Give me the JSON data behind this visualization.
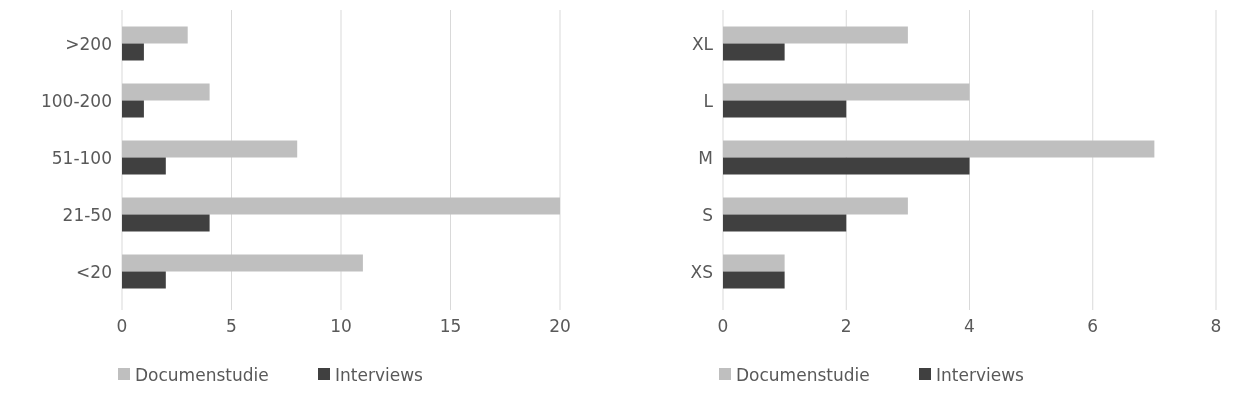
{
  "chart_data": [
    {
      "type": "bar",
      "orientation": "horizontal",
      "categories": [
        ">200",
        "100-200",
        "51-100",
        "21-50",
        "<20"
      ],
      "series": [
        {
          "name": "Documenstudie",
          "color": "#bfbfbf",
          "values": [
            3,
            4,
            8,
            20,
            11
          ]
        },
        {
          "name": "Interviews",
          "color": "#404040",
          "values": [
            1,
            1,
            2,
            4,
            2
          ]
        }
      ],
      "xlim": [
        0,
        20
      ],
      "xticks": [
        0,
        5,
        10,
        15,
        20
      ],
      "grid": "x",
      "legend": "bottom left"
    },
    {
      "type": "bar",
      "orientation": "horizontal",
      "categories": [
        "XL",
        "L",
        "M",
        "S",
        "XS"
      ],
      "series": [
        {
          "name": "Documenstudie",
          "color": "#bfbfbf",
          "values": [
            3,
            4,
            7,
            3,
            1
          ]
        },
        {
          "name": "Interviews",
          "color": "#404040",
          "values": [
            1,
            2,
            4,
            2,
            1
          ]
        }
      ],
      "xlim": [
        0,
        8
      ],
      "xticks": [
        0,
        2,
        4,
        6,
        8
      ],
      "grid": "x",
      "legend": "bottom left"
    }
  ]
}
